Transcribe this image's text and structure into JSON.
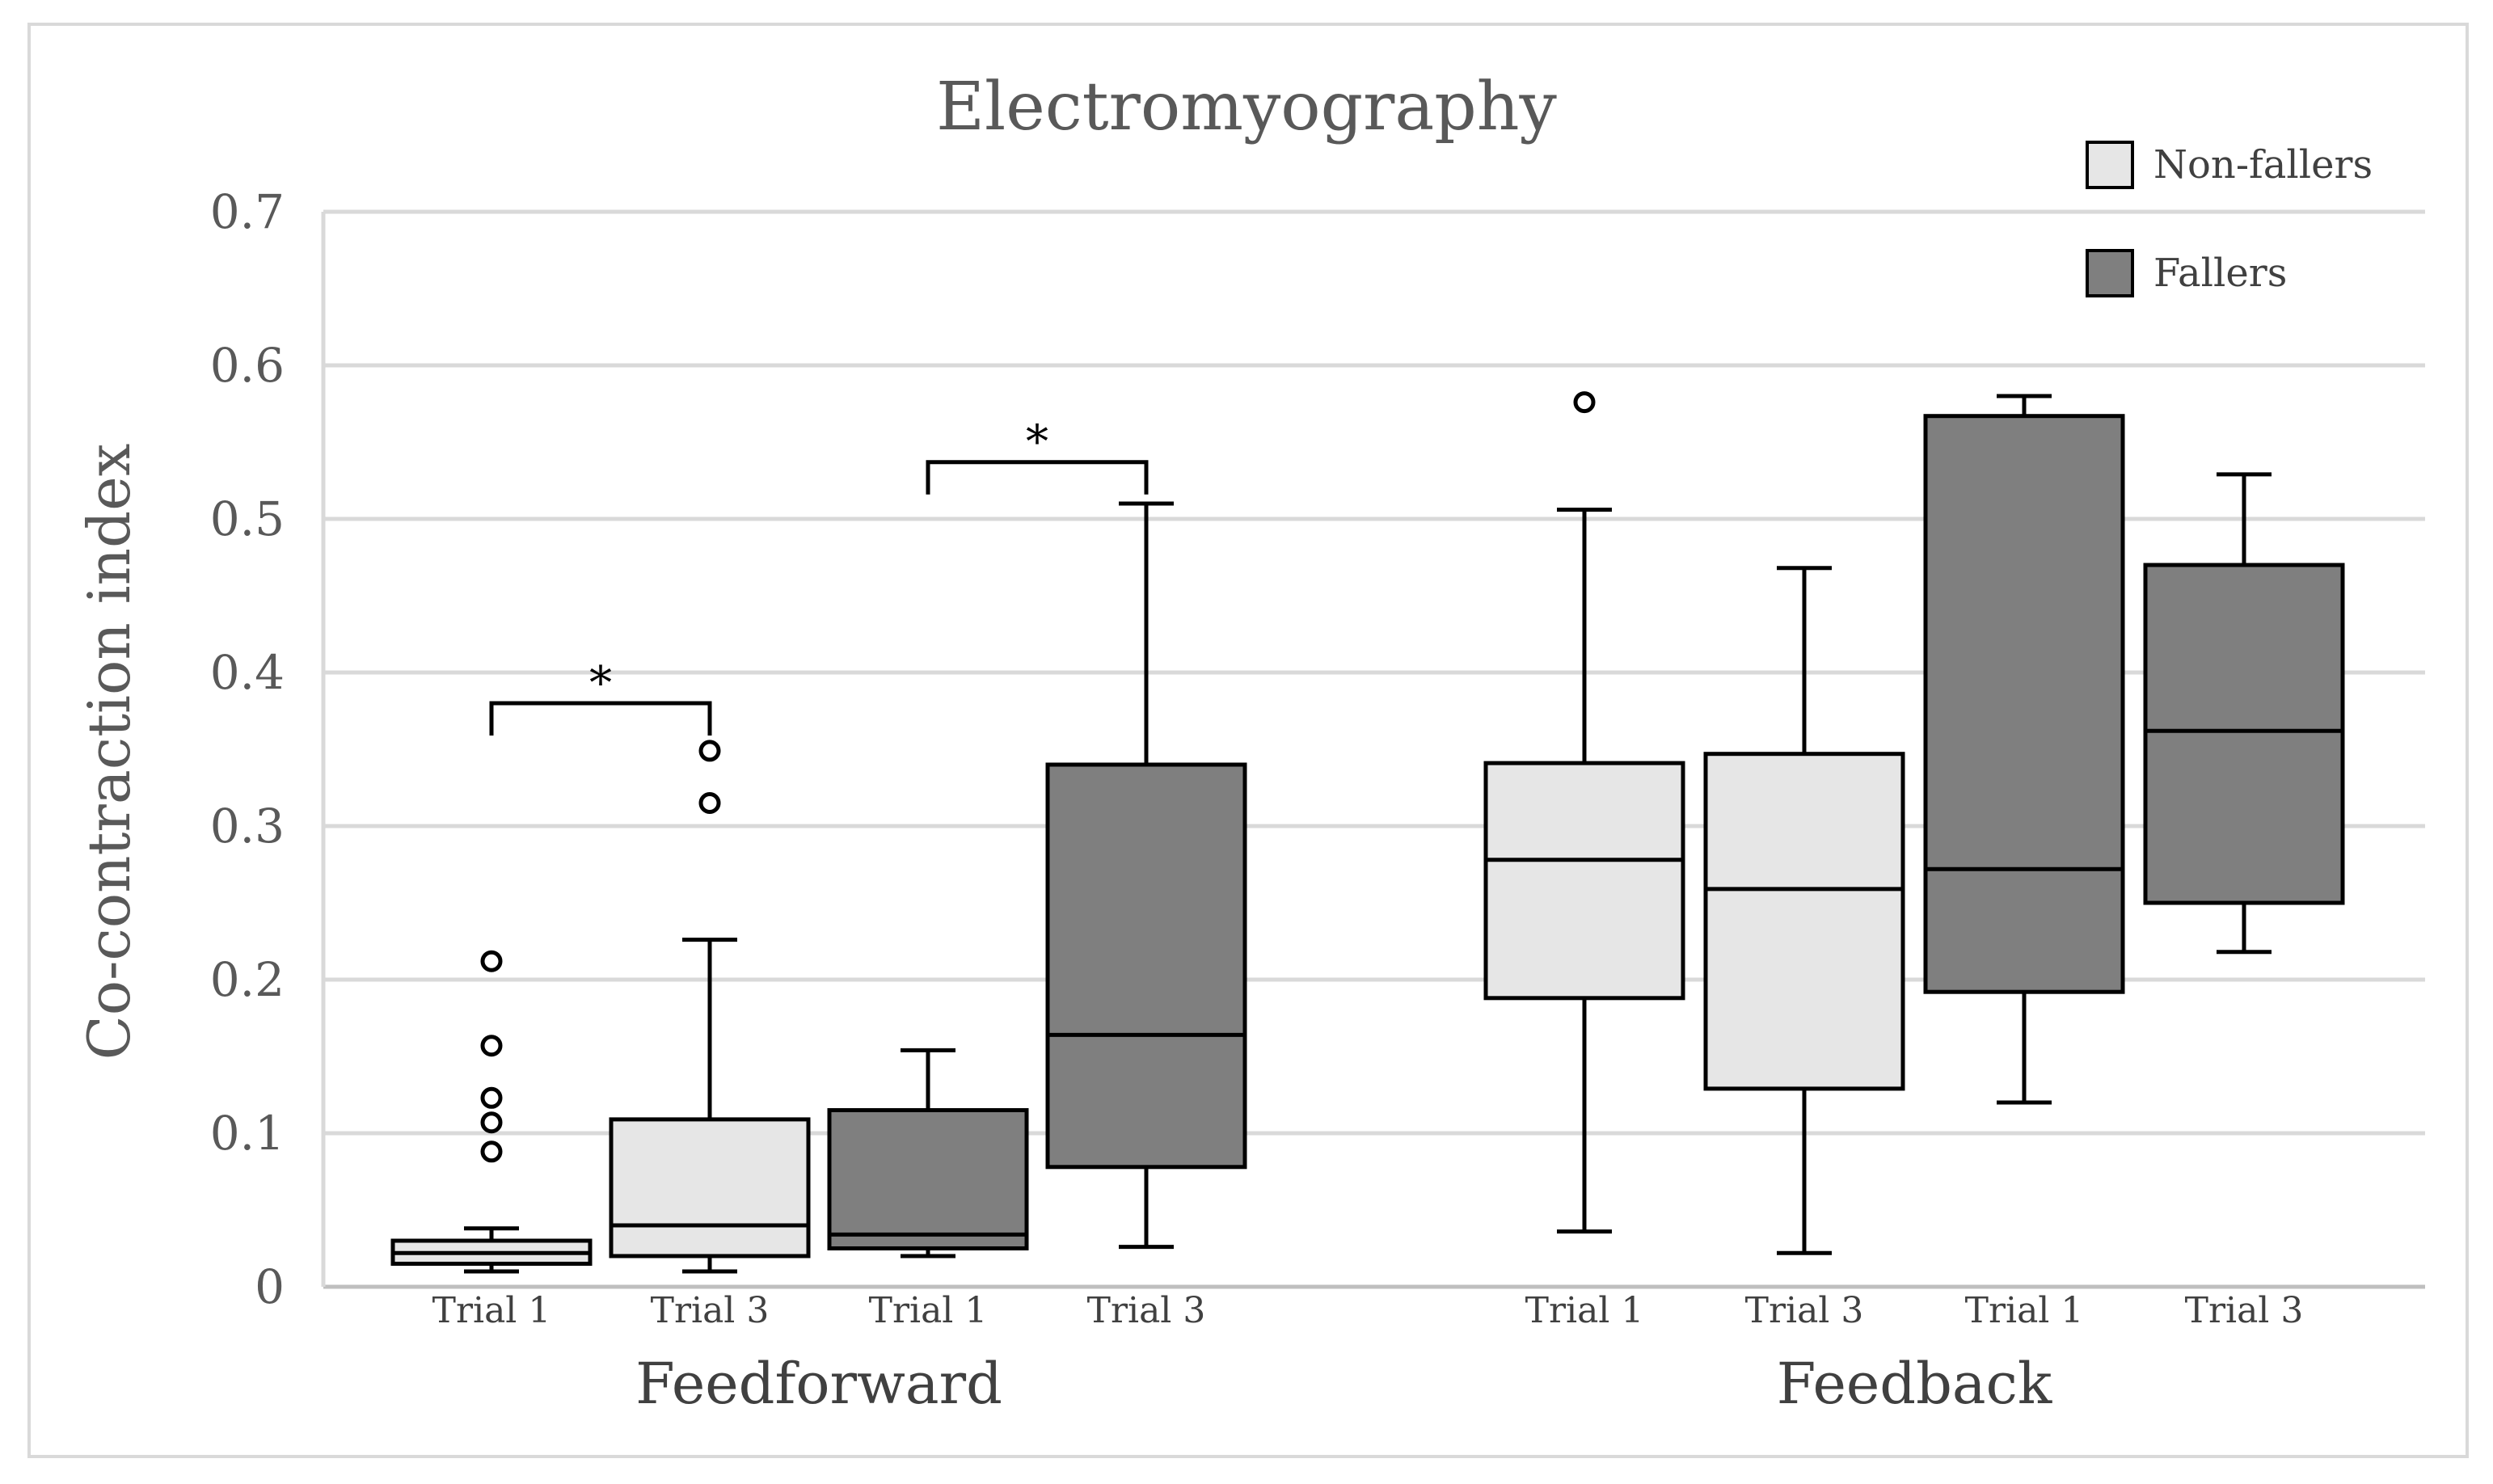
{
  "chart_data": {
    "type": "boxplot",
    "title": "Electromyography",
    "ylabel": "Co-contraction index",
    "xlabel": "",
    "ylim": [
      0,
      0.7
    ],
    "yticks": [
      0,
      0.1,
      0.2,
      0.3,
      0.4,
      0.5,
      0.6,
      0.7
    ],
    "ytick_labels": [
      "0",
      "0.1",
      "0.2",
      "0.3",
      "0.4",
      "0.5",
      "0.6",
      "0.7"
    ],
    "grid": true,
    "legend": {
      "position": "top-right",
      "entries": [
        {
          "name": "Non-fallers",
          "color": "#e6e6e6"
        },
        {
          "name": "Fallers",
          "color": "#7f7f7f"
        }
      ]
    },
    "groups": [
      {
        "name": "Feedforward",
        "categories": [
          "Trial 1",
          "Trial 3",
          "Trial 1",
          "Trial 3"
        ]
      },
      {
        "name": "Feedback",
        "categories": [
          "Trial 1",
          "Trial 3",
          "Trial 1",
          "Trial 3"
        ]
      }
    ],
    "boxes": [
      {
        "group": "Feedforward",
        "label": "Trial 1",
        "series": "Non-fallers",
        "whisker_low": 0.01,
        "q1": 0.015,
        "median": 0.022,
        "q3": 0.03,
        "whisker_high": 0.038,
        "outliers": [
          0.212,
          0.157,
          0.123,
          0.107,
          0.088
        ]
      },
      {
        "group": "Feedforward",
        "label": "Trial 3",
        "series": "Non-fallers",
        "whisker_low": 0.01,
        "q1": 0.02,
        "median": 0.04,
        "q3": 0.109,
        "whisker_high": 0.226,
        "outliers": [
          0.349,
          0.315
        ]
      },
      {
        "group": "Feedforward",
        "label": "Trial 1",
        "series": "Fallers",
        "whisker_low": 0.02,
        "q1": 0.025,
        "median": 0.034,
        "q3": 0.115,
        "whisker_high": 0.154,
        "outliers": []
      },
      {
        "group": "Feedforward",
        "label": "Trial 3",
        "series": "Fallers",
        "whisker_low": 0.026,
        "q1": 0.078,
        "median": 0.164,
        "q3": 0.34,
        "whisker_high": 0.51,
        "outliers": []
      },
      {
        "group": "Feedback",
        "label": "Trial 1",
        "series": "Non-fallers",
        "whisker_low": 0.036,
        "q1": 0.188,
        "median": 0.278,
        "q3": 0.341,
        "whisker_high": 0.506,
        "outliers": [
          0.576
        ]
      },
      {
        "group": "Feedback",
        "label": "Trial 3",
        "series": "Non-fallers",
        "whisker_low": 0.022,
        "q1": 0.129,
        "median": 0.259,
        "q3": 0.347,
        "whisker_high": 0.468,
        "outliers": []
      },
      {
        "group": "Feedback",
        "label": "Trial 1",
        "series": "Fallers",
        "whisker_low": 0.12,
        "q1": 0.192,
        "median": 0.272,
        "q3": 0.567,
        "whisker_high": 0.58,
        "outliers": []
      },
      {
        "group": "Feedback",
        "label": "Trial 3",
        "series": "Fallers",
        "whisker_low": 0.218,
        "q1": 0.25,
        "median": 0.362,
        "q3": 0.47,
        "whisker_high": 0.529,
        "outliers": []
      }
    ],
    "significance": [
      {
        "from_box": 0,
        "to_box": 1,
        "level": 0.38,
        "label": "*"
      },
      {
        "from_box": 2,
        "to_box": 3,
        "level": 0.537,
        "label": "*"
      }
    ]
  }
}
